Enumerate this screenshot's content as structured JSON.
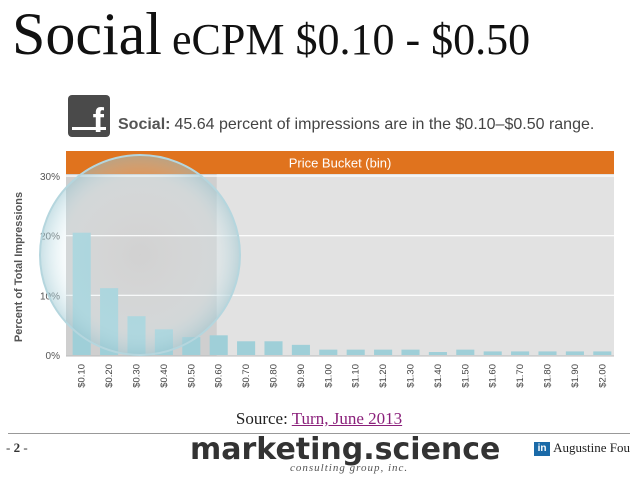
{
  "slide": {
    "title_word": "Social",
    "title_rest": "eCPM $0.10 - $0.50",
    "source_label": "Source:",
    "source_link": "Turn, June 2013",
    "page_number": "2",
    "brand": "marketing.science",
    "brand_sub": "consulting group, inc.",
    "author": "Augustine Fou",
    "author_badge": "in"
  },
  "chart_header": {
    "icon_letter": "f",
    "label": "Social:",
    "text": "45.64 percent of impressions are in the $0.10–$0.50 range."
  },
  "colors": {
    "bar": "#9fcfd8",
    "header_band": "#e0731e",
    "plot_bg": "#e2e2e2",
    "highlight_bg": "#cfcfcf",
    "gridline": "#ffffff"
  },
  "chart_data": {
    "type": "bar",
    "title": "Price Bucket (bin)",
    "ylabel": "Percent of Total Impressions",
    "xlabel": "",
    "ylim": [
      0,
      30
    ],
    "yticks": [
      "0%",
      "10%",
      "20%",
      "30%"
    ],
    "grid": true,
    "highlight_range": [
      "$0.10",
      "$0.50"
    ],
    "categories": [
      "$0.10",
      "$0.20",
      "$0.30",
      "$0.40",
      "$0.50",
      "$0.60",
      "$0.70",
      "$0.80",
      "$0.90",
      "$1.00",
      "$1.10",
      "$1.20",
      "$1.30",
      "$1.40",
      "$1.50",
      "$1.60",
      "$1.70",
      "$1.80",
      "$1.90",
      "$2.00"
    ],
    "values": [
      20.5,
      11.2,
      6.5,
      4.3,
      3.0,
      3.3,
      2.3,
      2.3,
      1.7,
      0.9,
      0.9,
      0.9,
      0.9,
      0.5,
      0.9,
      0.6,
      0.6,
      0.6,
      0.6,
      0.6
    ]
  }
}
